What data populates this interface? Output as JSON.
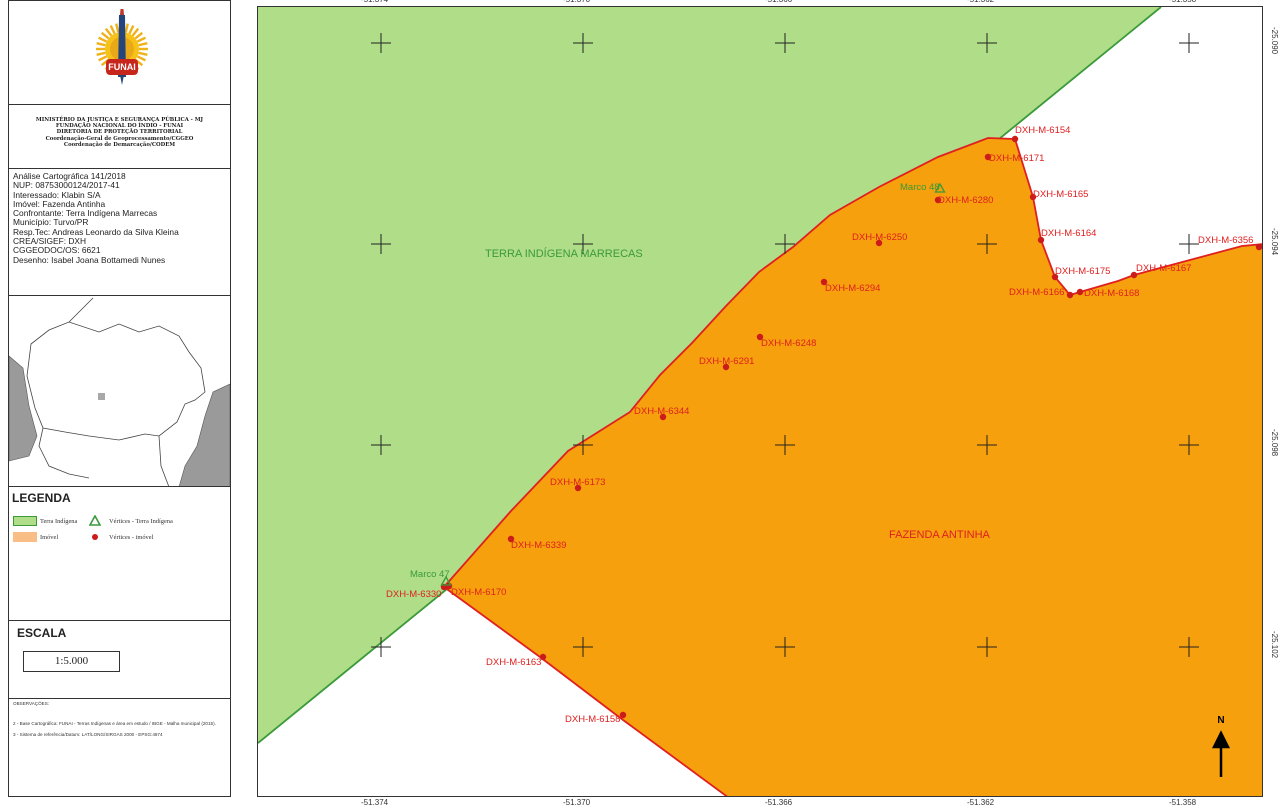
{
  "logo": {
    "text": "FUNAI",
    "description": "funai-sun-emblem"
  },
  "org_header": [
    "MINISTÉRIO DA JUSTIÇA E SEGURANÇA PÚBLICA - MJ",
    "FUNDAÇÃO NACIONAL DO ÍNDIO - FUNAI",
    "DIRETORIA DE PROTEÇÃO TERRITORIAL",
    "Coordenação-Geral de Geoprocessamento/CGGEO",
    "Coordenação de Demarcação/CODEM"
  ],
  "metadata": [
    "Análise Cartográfica 141/2018",
    "NUP: 08753000124/2017-41",
    "Interessado: Klabin S/A",
    "Imóvel: Fazenda Antinha",
    "Confrontante: Terra Indígena Marrecas",
    "Município: Turvo/PR",
    "Resp.Tec: Andreas Leonardo da Silva Kleina",
    "CREA/SIGEF: DXH",
    "CGGEODOC/OS: 6621",
    "Desenho: Isabel Joana Bottamedi Nunes"
  ],
  "legend": {
    "title": "LEGENDA",
    "terra_indigena": "Terra Indígena",
    "imovel": "Imóvel",
    "vertices_ti": "Vértices - Terra Indígena",
    "vertices_imovel": "Vértices - imóvel"
  },
  "scale": {
    "title": "ESCALA",
    "value": "1:5.000"
  },
  "observations": [
    "OBSERVAÇÕES:",
    "2 - Base Cartográfica: FUNAI - Terras Indígenas e área em estudo / IBGE - Malha municipal (2015).",
    "3 - Sistema de referência/Datum: LAT/LONG/SIRGAS 2000 - EPSG:4674"
  ],
  "map": {
    "lon_labels": [
      "-51.374",
      "-51.370",
      "-51.366",
      "-51.362",
      "-51.358"
    ],
    "lat_labels": [
      "-25.090",
      "-25.094",
      "-25.098",
      "-25.102"
    ],
    "area_labels": {
      "ti": "TERRA INDÍGENA MARRECAS",
      "imovel": "FAZENDA ANTINHA"
    },
    "north": "N",
    "colors": {
      "ti_fill": "#b0dd88",
      "ti_line": "#3a9a3a",
      "imovel_fill": "#f5a00c",
      "imovel_line": "#e02020",
      "vertex": "#cc1b1b",
      "ti_text": "#3a9a3a",
      "label": "#e02020"
    },
    "marcos": [
      "Marco 47",
      "Marco 48"
    ],
    "vertices": [
      "DXH-M-6154",
      "DXH-M-6171",
      "DXH-M-6165",
      "DXH-M-6164",
      "DXH-M-6175",
      "DXH-M-6166",
      "DXH-M-6168",
      "DXH-M-6167",
      "DXH-M-6356",
      "DXH-M-6280",
      "DXH-M-6250",
      "DXH-M-6294",
      "DXH-M-6248",
      "DXH-M-6291",
      "DXH-M-6344",
      "DXH-M-6173",
      "DXH-M-6339",
      "DXH-M-6330",
      "DXH-M-6170",
      "DXH-M-6163",
      "DXH-M-6158"
    ]
  }
}
